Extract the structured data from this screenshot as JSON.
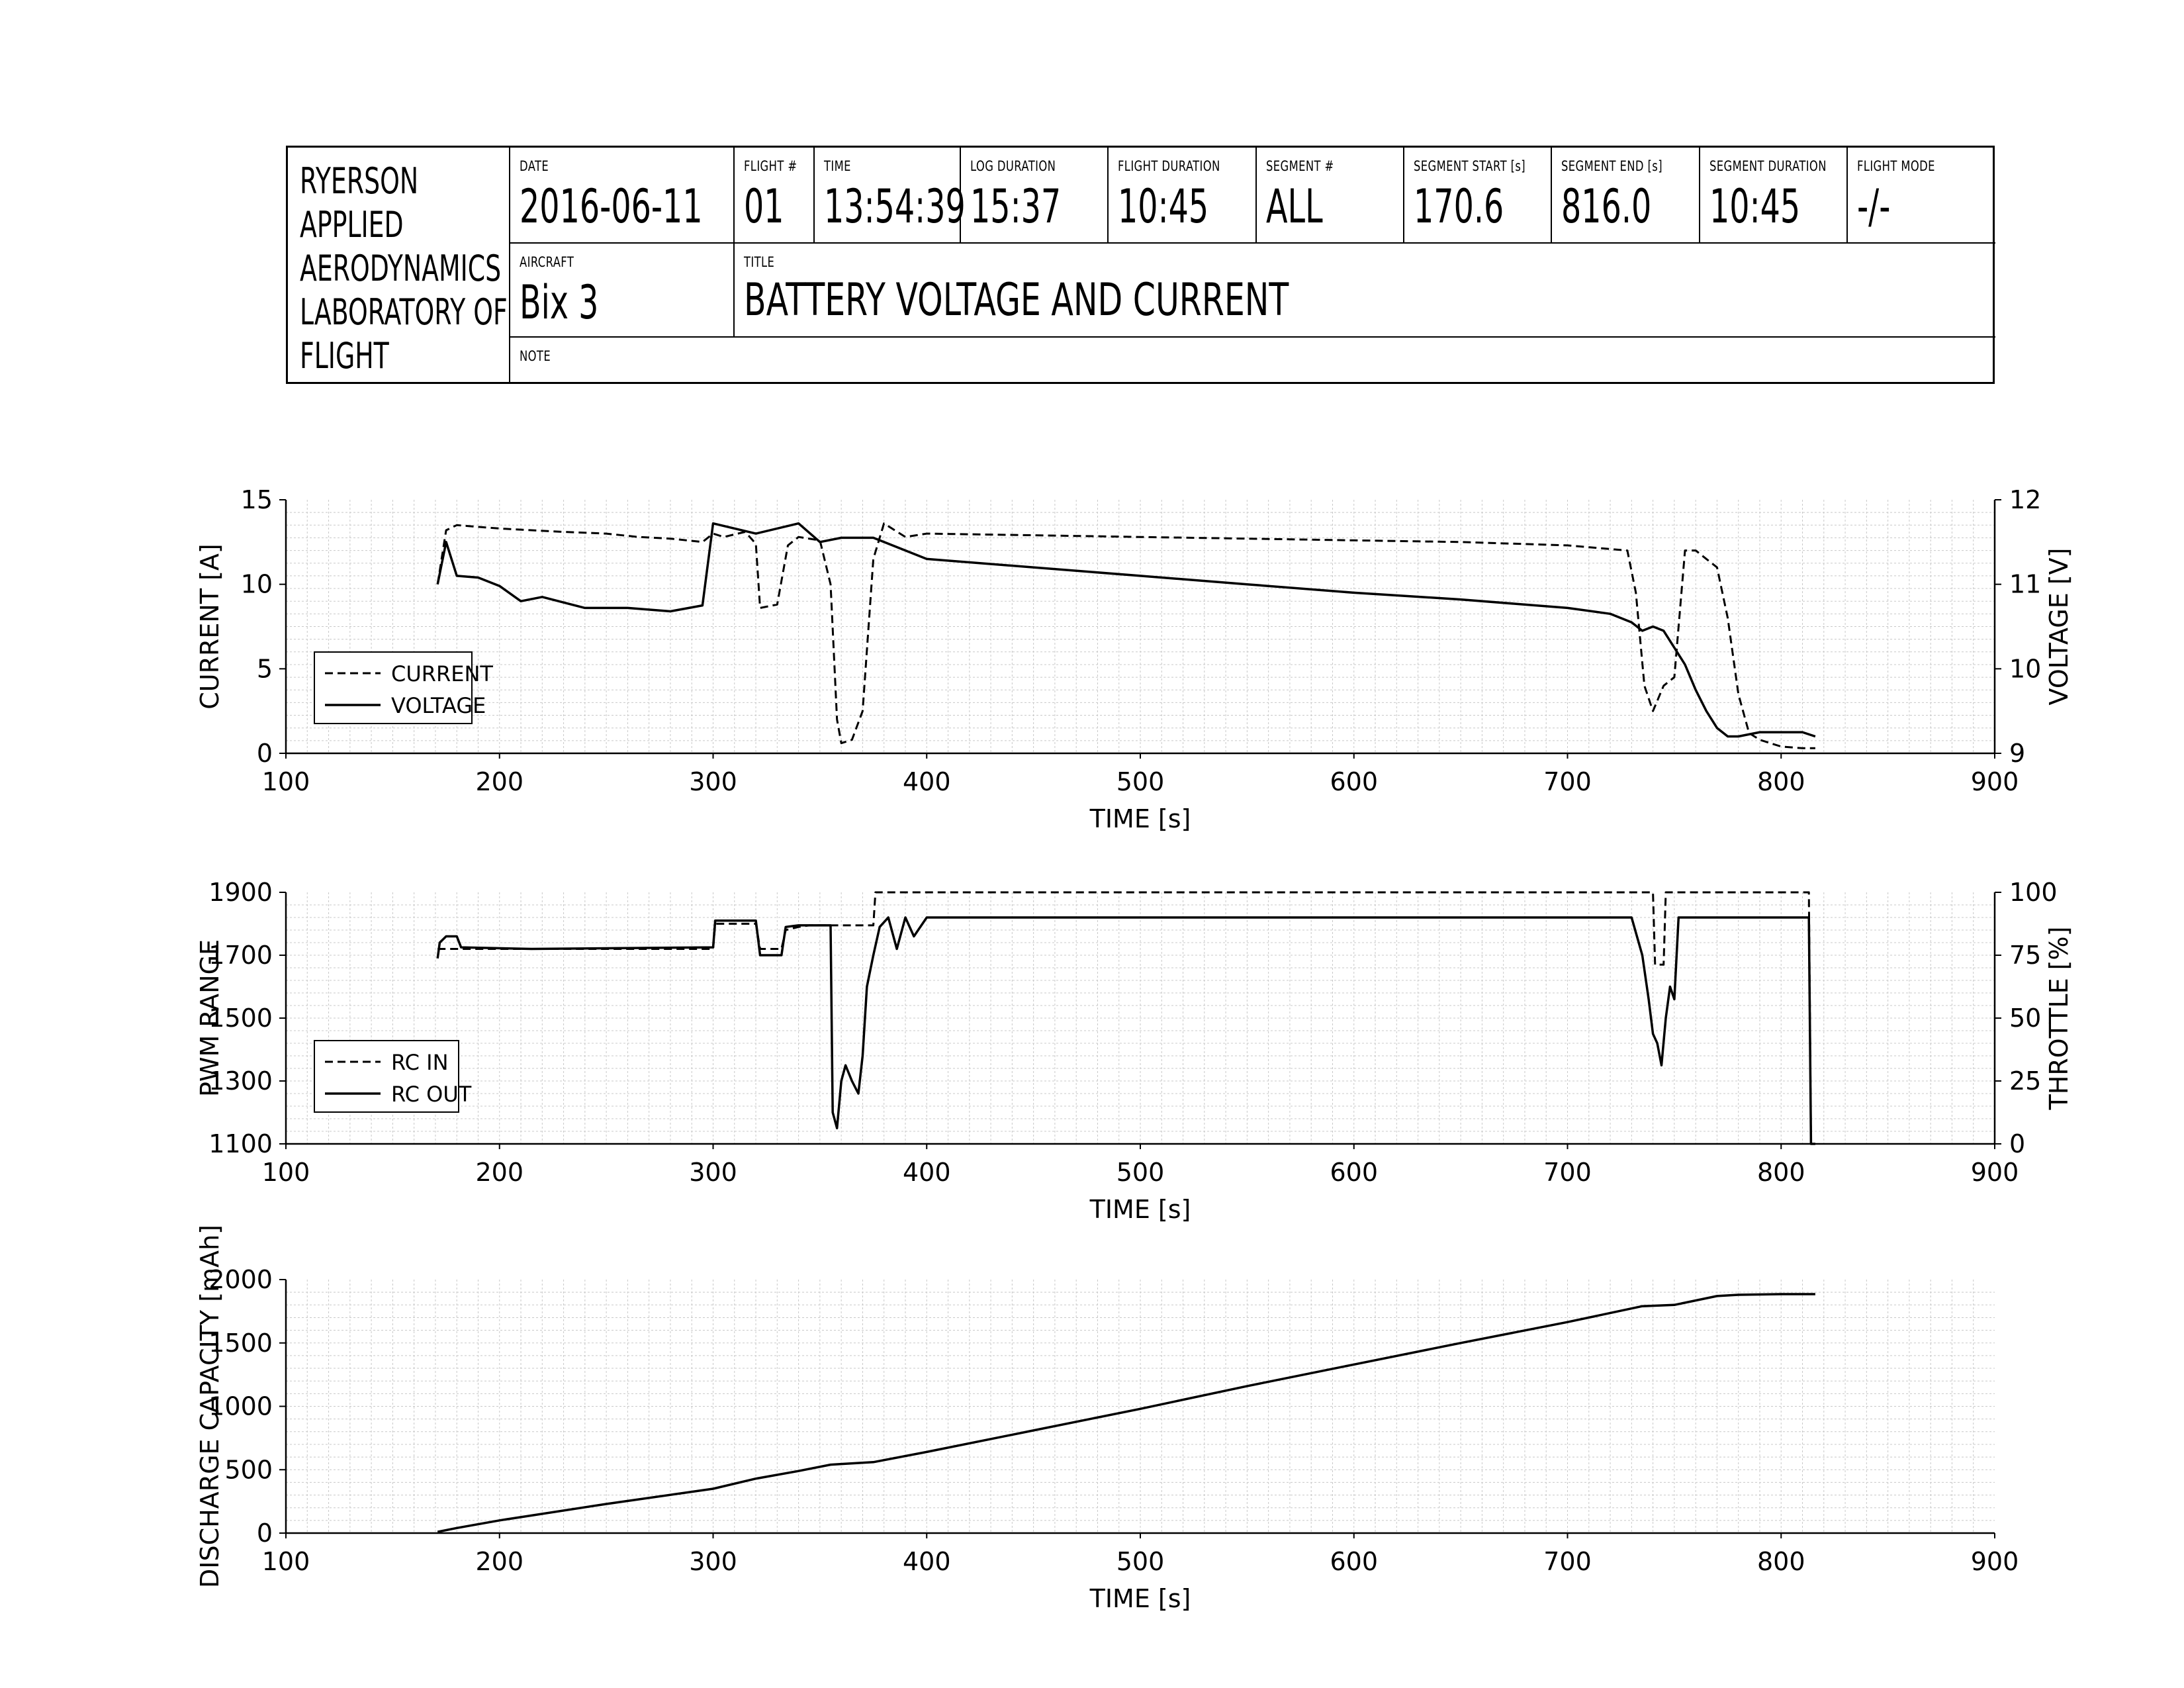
{
  "header": {
    "organization_lines": [
      "RYERSON",
      "APPLIED",
      "AERODYNAMICS",
      "LABORATORY OF",
      "FLIGHT"
    ],
    "fields": [
      {
        "label": "DATE",
        "value": "2016-06-11"
      },
      {
        "label": "FLIGHT #",
        "value": "01"
      },
      {
        "label": "TIME",
        "value": "13:54:39"
      },
      {
        "label": "LOG DURATION",
        "value": "15:37"
      },
      {
        "label": "FLIGHT DURATION",
        "value": "10:45"
      },
      {
        "label": "SEGMENT #",
        "value": "ALL"
      },
      {
        "label": "SEGMENT START [s]",
        "value": "170.6"
      },
      {
        "label": "SEGMENT END [s]",
        "value": "816.0"
      },
      {
        "label": "SEGMENT DURATION",
        "value": "10:45"
      },
      {
        "label": "FLIGHT MODE",
        "value": "-/-"
      }
    ],
    "aircraft_label": "AIRCRAFT",
    "aircraft_value": "Bix 3",
    "title_label": "TITLE",
    "title_value": "BATTERY VOLTAGE AND CURRENT",
    "note_label": "NOTE",
    "note_value": ""
  },
  "chart_data": [
    {
      "type": "line",
      "xlabel": "TIME [s]",
      "ylabel": "CURRENT [A]",
      "y2label": "VOLTAGE [V]",
      "xlim": [
        100,
        900
      ],
      "ylim": [
        0,
        15
      ],
      "y2lim": [
        9,
        12
      ],
      "xticks": [
        100,
        200,
        300,
        400,
        500,
        600,
        700,
        800,
        900
      ],
      "yticks": [
        0,
        5,
        10,
        15
      ],
      "y2ticks": [
        9,
        10,
        11,
        12
      ],
      "grid": true,
      "legend_position": "lower-left",
      "series": [
        {
          "name": "CURRENT",
          "axis": "left",
          "style": "dashed",
          "x": [
            171,
            175,
            180,
            190,
            200,
            215,
            230,
            250,
            265,
            280,
            295,
            300,
            305,
            315,
            320,
            322,
            330,
            335,
            340,
            350,
            355,
            358,
            360,
            365,
            370,
            375,
            380,
            390,
            400,
            450,
            500,
            550,
            600,
            650,
            700,
            728,
            732,
            736,
            740,
            745,
            750,
            755,
            760,
            765,
            770,
            775,
            780,
            785,
            790,
            800,
            810,
            816
          ],
          "values": [
            10.0,
            13.2,
            13.5,
            13.4,
            13.3,
            13.2,
            13.1,
            13.0,
            12.8,
            12.7,
            12.5,
            13.0,
            12.8,
            13.1,
            12.4,
            8.6,
            8.8,
            12.3,
            12.8,
            12.6,
            10.0,
            2.0,
            0.6,
            0.8,
            2.5,
            11.5,
            13.6,
            12.8,
            13.0,
            12.9,
            12.8,
            12.7,
            12.6,
            12.5,
            12.3,
            12.0,
            9.5,
            4.0,
            2.5,
            4.0,
            4.5,
            12.0,
            12.0,
            11.5,
            11.0,
            8.0,
            3.5,
            1.2,
            0.8,
            0.4,
            0.3,
            0.3
          ]
        },
        {
          "name": "VOLTAGE",
          "axis": "right",
          "style": "solid",
          "x": [
            171,
            175,
            180,
            190,
            200,
            210,
            220,
            240,
            260,
            280,
            295,
            300,
            320,
            340,
            350,
            360,
            375,
            380,
            400,
            450,
            500,
            550,
            600,
            650,
            700,
            720,
            730,
            735,
            740,
            745,
            750,
            755,
            760,
            765,
            770,
            775,
            780,
            790,
            800,
            810,
            816
          ],
          "values": [
            11.0,
            11.5,
            11.1,
            11.08,
            10.98,
            10.8,
            10.85,
            10.72,
            10.72,
            10.68,
            10.75,
            11.72,
            11.6,
            11.72,
            11.5,
            11.55,
            11.55,
            11.5,
            11.3,
            11.2,
            11.1,
            11.0,
            10.9,
            10.82,
            10.72,
            10.65,
            10.55,
            10.45,
            10.5,
            10.45,
            10.25,
            10.05,
            9.75,
            9.5,
            9.3,
            9.2,
            9.2,
            9.25,
            9.25,
            9.25,
            9.2
          ]
        }
      ]
    },
    {
      "type": "line",
      "xlabel": "TIME [s]",
      "ylabel": "PWM RANGE",
      "y2label": "THROTTLE [%]",
      "xlim": [
        100,
        900
      ],
      "ylim": [
        1100,
        1900
      ],
      "y2lim": [
        0,
        100
      ],
      "xticks": [
        100,
        200,
        300,
        400,
        500,
        600,
        700,
        800,
        900
      ],
      "yticks": [
        1100,
        1300,
        1500,
        1700,
        1900
      ],
      "y2ticks": [
        0,
        25,
        50,
        75,
        100
      ],
      "grid": true,
      "legend_position": "lower-left",
      "series": [
        {
          "name": "RC IN",
          "axis": "left",
          "style": "dashed",
          "x": [
            171,
            175,
            178,
            185,
            215,
            300,
            301,
            320,
            322,
            332,
            334,
            340,
            345,
            370,
            375,
            376,
            380,
            400,
            500,
            600,
            700,
            732,
            734,
            740,
            741,
            745,
            746,
            800,
            813,
            814,
            816
          ],
          "values": [
            1720,
            1720,
            1720,
            1720,
            1720,
            1720,
            1800,
            1800,
            1720,
            1720,
            1780,
            1790,
            1795,
            1795,
            1795,
            1900,
            1900,
            1900,
            1900,
            1900,
            1900,
            1900,
            1900,
            1900,
            1670,
            1670,
            1900,
            1900,
            1900,
            1100,
            1100
          ]
        },
        {
          "name": "RC OUT",
          "axis": "left",
          "style": "solid",
          "x": [
            171,
            172,
            175,
            180,
            182,
            215,
            300,
            301,
            320,
            322,
            332,
            334,
            340,
            355,
            356,
            358,
            360,
            362,
            365,
            368,
            370,
            372,
            375,
            378,
            382,
            386,
            390,
            394,
            400,
            500,
            600,
            700,
            730,
            735,
            738,
            740,
            742,
            744,
            746,
            748,
            750,
            752,
            800,
            813,
            814,
            816
          ],
          "values": [
            1690,
            1740,
            1760,
            1760,
            1725,
            1720,
            1725,
            1810,
            1810,
            1700,
            1700,
            1790,
            1795,
            1795,
            1200,
            1150,
            1300,
            1350,
            1300,
            1260,
            1380,
            1600,
            1700,
            1790,
            1820,
            1720,
            1820,
            1760,
            1820,
            1820,
            1820,
            1820,
            1820,
            1700,
            1560,
            1450,
            1420,
            1350,
            1500,
            1600,
            1560,
            1820,
            1820,
            1820,
            1100,
            1100
          ]
        }
      ]
    },
    {
      "type": "line",
      "xlabel": "TIME [s]",
      "ylabel": "DISCHARGE CAPACITY [mAh]",
      "xlim": [
        100,
        900
      ],
      "ylim": [
        0,
        2000
      ],
      "xticks": [
        100,
        200,
        300,
        400,
        500,
        600,
        700,
        800,
        900
      ],
      "yticks": [
        0,
        500,
        1000,
        1500,
        2000
      ],
      "grid": true,
      "series": [
        {
          "name": "",
          "axis": "left",
          "style": "solid",
          "x": [
            171,
            180,
            200,
            250,
            300,
            320,
            340,
            355,
            360,
            375,
            400,
            450,
            500,
            550,
            600,
            650,
            700,
            735,
            750,
            770,
            780,
            800,
            816
          ],
          "values": [
            10,
            40,
            100,
            230,
            350,
            430,
            490,
            540,
            545,
            560,
            640,
            810,
            980,
            1160,
            1330,
            1500,
            1665,
            1790,
            1800,
            1870,
            1880,
            1885,
            1885
          ]
        }
      ]
    }
  ]
}
